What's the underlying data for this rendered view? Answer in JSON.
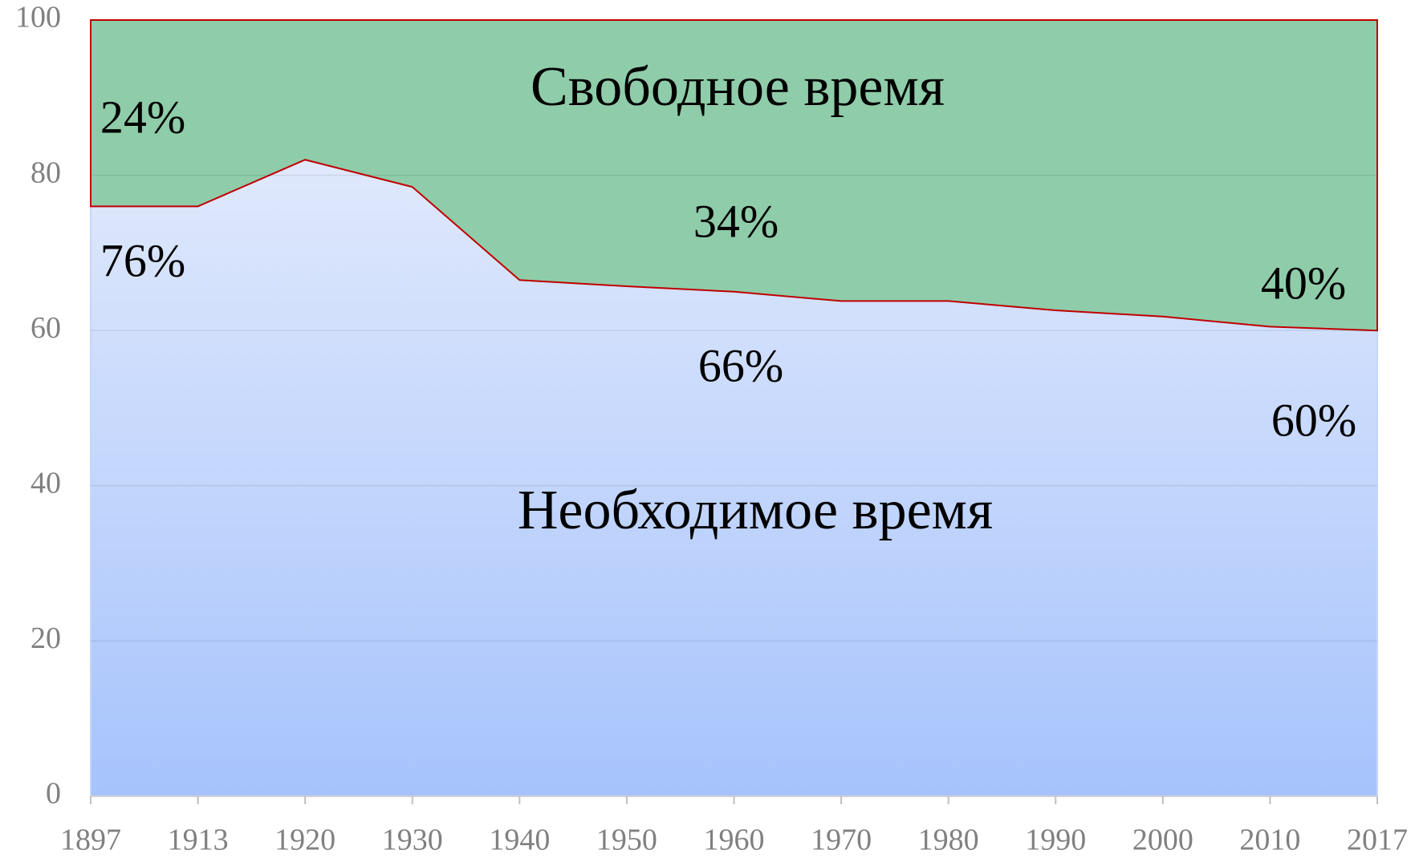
{
  "chart_data": {
    "type": "stacked_area",
    "categories": [
      "1897",
      "1913",
      "1920",
      "1930",
      "1940",
      "1950",
      "1960",
      "1970",
      "1980",
      "1990",
      "2000",
      "2010",
      "2017"
    ],
    "series": [
      {
        "name": "Необходимое время",
        "color": "#b7cdfb",
        "values": [
          76,
          76,
          82,
          78.5,
          66.5,
          65.7,
          65,
          63.8,
          63.8,
          62.6,
          61.8,
          60.5,
          60
        ]
      },
      {
        "name": "Свободное время",
        "color": "#8fcca9",
        "values": [
          24,
          24,
          18,
          21.5,
          33.5,
          34.3,
          35,
          36.2,
          36.2,
          37.4,
          38.2,
          39.5,
          40
        ]
      }
    ],
    "annotations": [
      "24%",
      "76%",
      "34%",
      "66%",
      "40%",
      "60%"
    ],
    "ylim": [
      0,
      100
    ],
    "yticks": [
      0,
      20,
      40,
      60,
      80,
      100
    ],
    "grid": true,
    "line_color": "#c00000"
  }
}
